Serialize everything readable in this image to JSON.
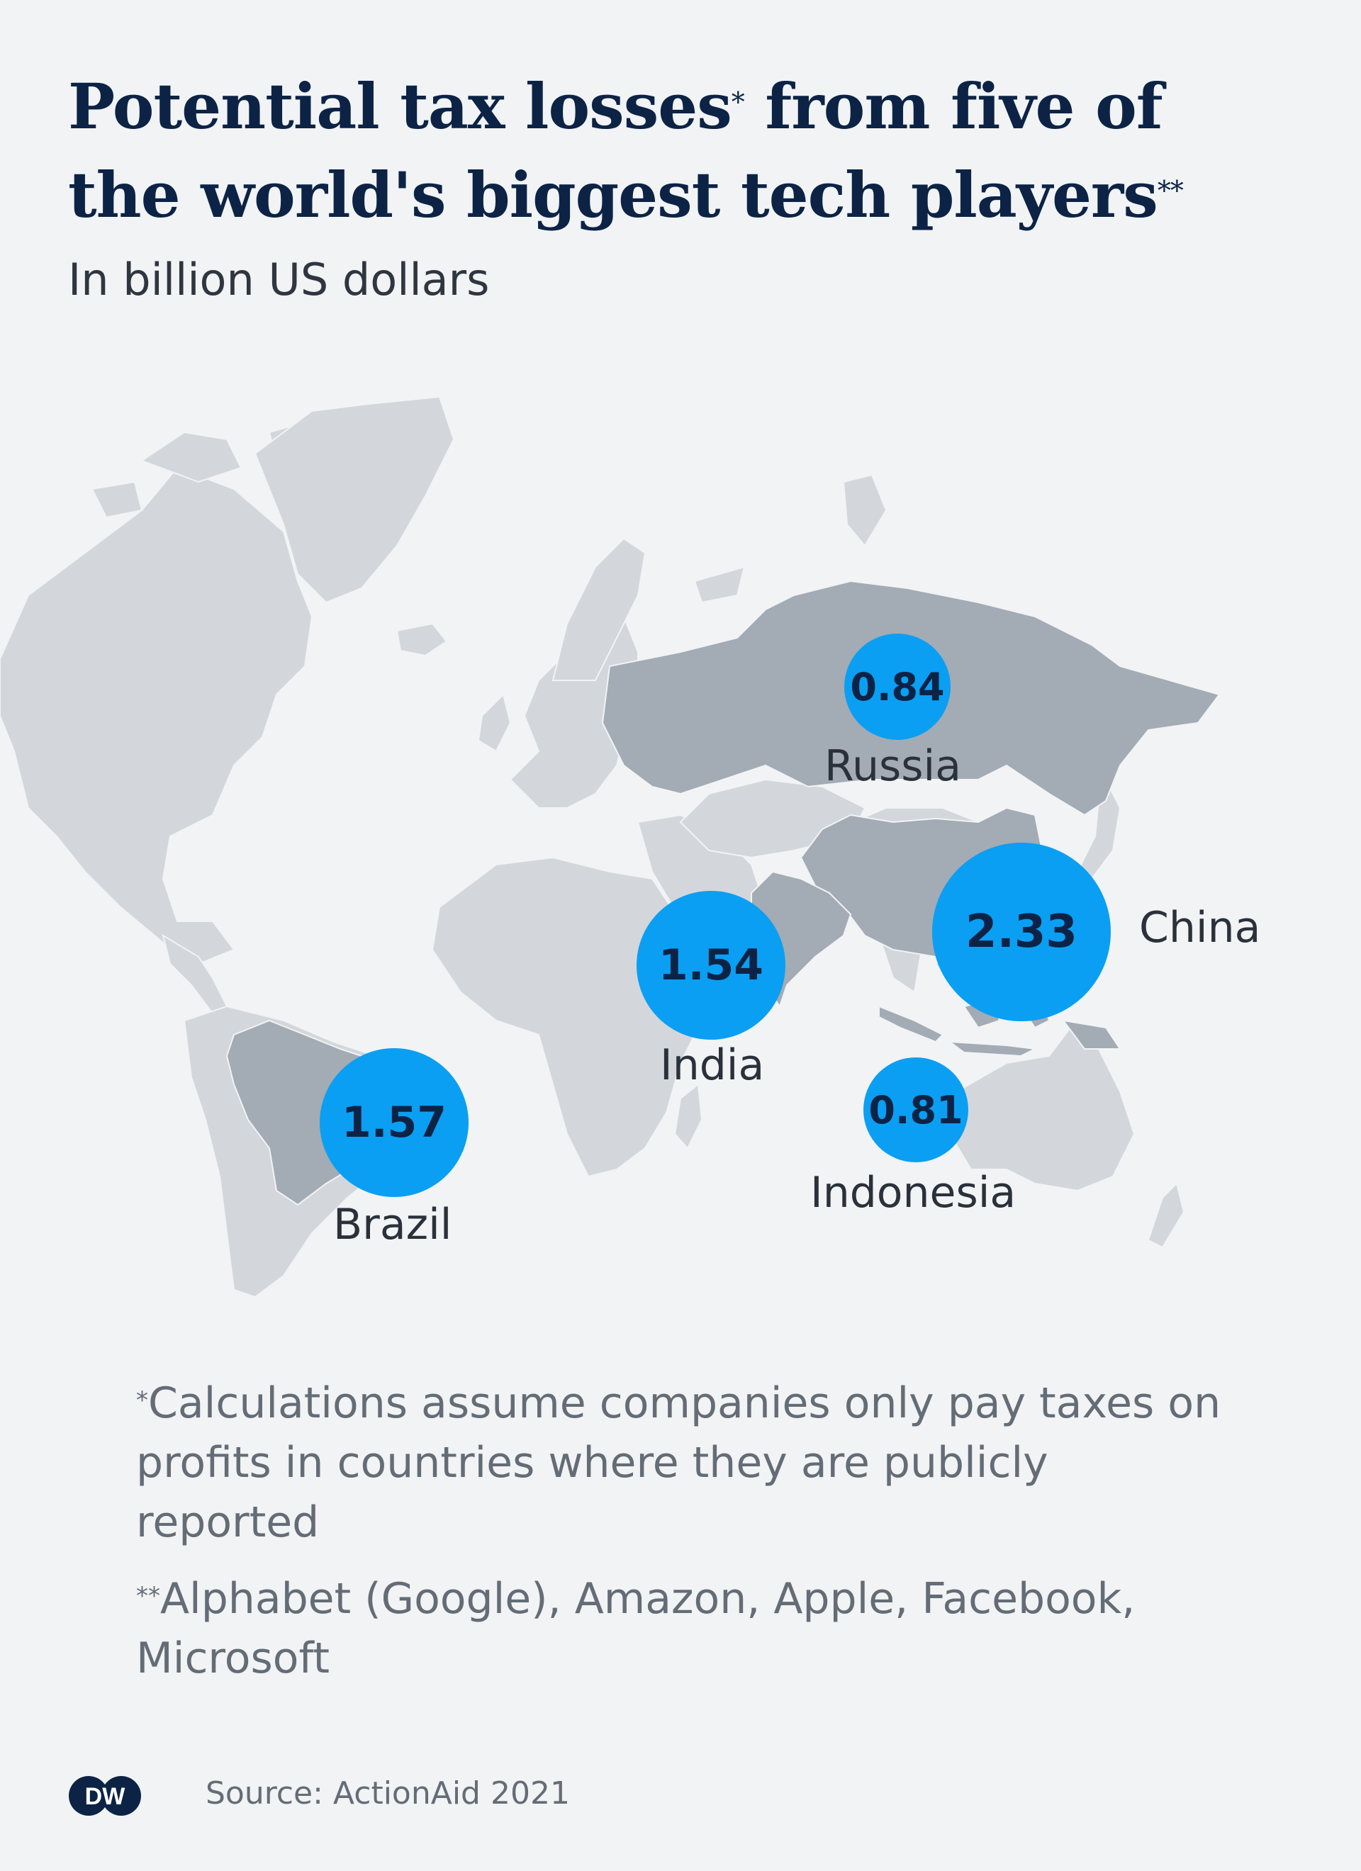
{
  "header": {
    "title_part1": "Potential tax losses",
    "title_mark1": "*",
    "title_part2": " from five of the world's biggest tech players",
    "title_mark2": "**",
    "subtitle": "In billion US dollars"
  },
  "map": {
    "unit": "billion US dollars",
    "colors": {
      "background": "#f1f3f5",
      "land": "#d3d7dc",
      "highlighted_country": "#a3abb4",
      "bubble": "#0a9ff2",
      "value_text": "#0c2345"
    },
    "countries": [
      {
        "name": "Russia",
        "value": "0.84"
      },
      {
        "name": "China",
        "value": "2.33"
      },
      {
        "name": "India",
        "value": "1.54"
      },
      {
        "name": "Brazil",
        "value": "1.57"
      },
      {
        "name": "Indonesia",
        "value": "0.81"
      }
    ]
  },
  "footnotes": {
    "note1_mark": "*",
    "note1_text": "Calculations assume companies only pay taxes on profits in countries where they are publicly reported",
    "note2_mark": "**",
    "note2_text": "Alphabet (Google), Amazon, Apple, Facebook, Microsoft"
  },
  "footer": {
    "logo_text": "DW",
    "source": "Source: ActionAid 2021"
  }
}
